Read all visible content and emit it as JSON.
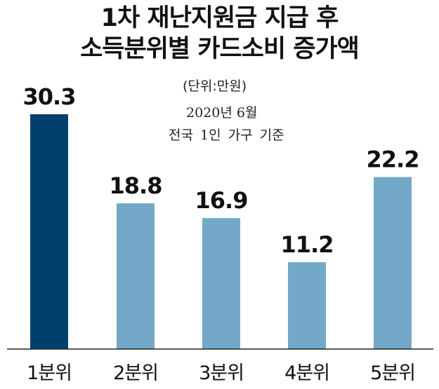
{
  "chart_data": {
    "type": "bar",
    "title_lines": [
      "1차 재난지원금 지급 후",
      "소득분위별 카드소비 증가액"
    ],
    "unit_note": "(단위:만원)",
    "date_note": "2020년 6월",
    "basis_note": "전국 1인 가구 기준",
    "categories": [
      "1분위",
      "2분위",
      "3분위",
      "4분위",
      "5분위"
    ],
    "values": [
      30.3,
      18.8,
      16.9,
      11.2,
      22.2
    ],
    "value_labels": [
      "30.3",
      "18.8",
      "16.9",
      "11.2",
      "22.2"
    ],
    "ylim": [
      0,
      30.3
    ],
    "highlight_index": 0,
    "colors": {
      "highlight": "#003f6e",
      "bar": "#73a8c9",
      "baseline": "#222222"
    }
  }
}
